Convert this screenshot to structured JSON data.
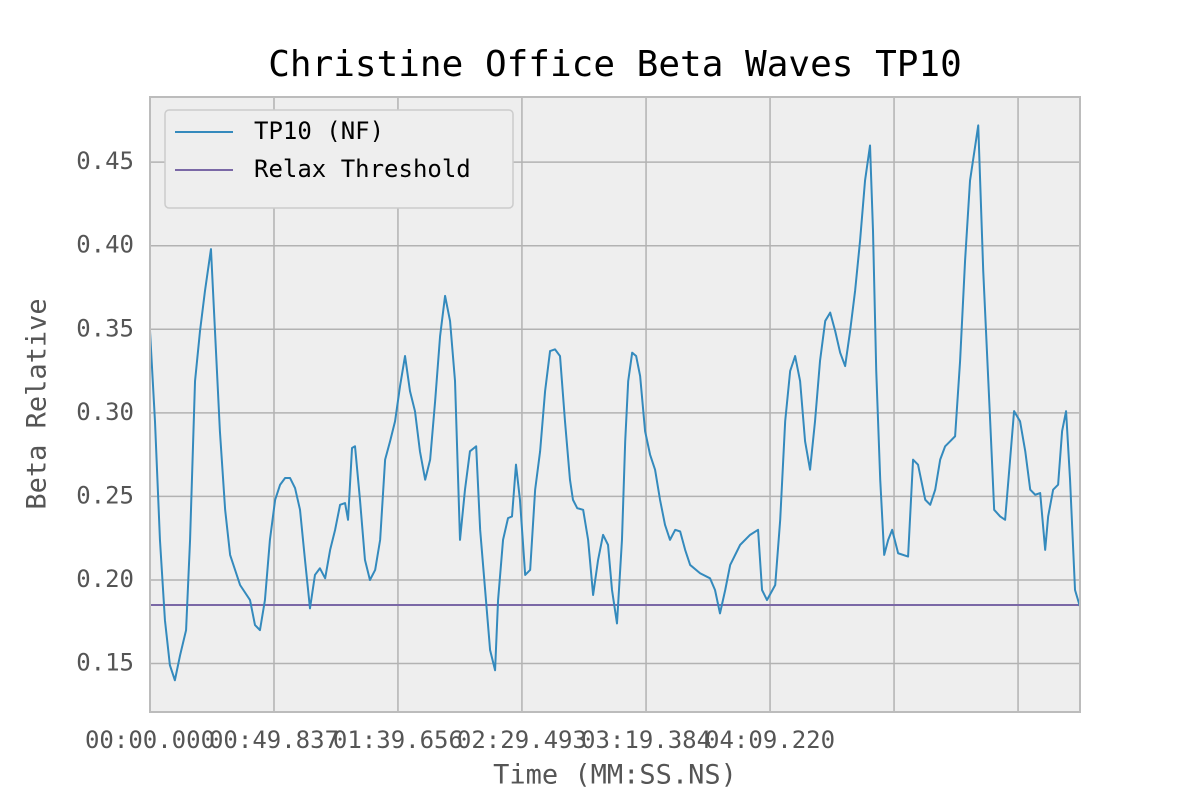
{
  "chart_data": {
    "type": "line",
    "title": "Christine Office Beta Waves TP10",
    "x_label": "Time (MM:SS.NS)",
    "y_label": "Beta Relative",
    "x": [
      0,
      2.0,
      4.0,
      6.0,
      8.0,
      10.0,
      12.1,
      14.5,
      16.1,
      18.1,
      20.1,
      22.1,
      24.5,
      28.1,
      30.2,
      32.2,
      36.2,
      40.2,
      42.2,
      44.2,
      46.2,
      48.2,
      50.3,
      52.3,
      54.3,
      56.3,
      58.3,
      60.3,
      62.3,
      64.3,
      66.3,
      68.3,
      70.4,
      72.4,
      74.4,
      76.4,
      78.4,
      79.6,
      81.2,
      82.4,
      84.4,
      86.4,
      88.4,
      90.5,
      92.5,
      94.5,
      96.5,
      98.5,
      100.5,
      102.5,
      104.5,
      106.5,
      108.5,
      110.6,
      112.6,
      114.6,
      116.6,
      118.6,
      120.6,
      122.6,
      124.6,
      126.6,
      128.6,
      131.1,
      132.7,
      134.7,
      136.7,
      138.7,
      139.9,
      141.9,
      143.9,
      145.5,
      147.1,
      148.7,
      150.8,
      152.8,
      154.8,
      156.8,
      158.8,
      160.8,
      162.8,
      164.8,
      166.8,
      168.8,
      170.0,
      171.7,
      174.1,
      176.1,
      178.1,
      180.1,
      182.1,
      184.1,
      185.7,
      187.7,
      189.7,
      191.0,
      192.2,
      193.8,
      195.4,
      197.0,
      199.0,
      201.0,
      203.0,
      205.0,
      207.0,
      209.0,
      211.1,
      213.1,
      215.1,
      217.1,
      221.1,
      225.1,
      227.1,
      229.1,
      231.2,
      233.2,
      237.2,
      241.2,
      244.4,
      246.0,
      248.0,
      251.3,
      253.3,
      255.3,
      257.3,
      259.3,
      261.3,
      263.3,
      265.3,
      267.3,
      269.3,
      271.4,
      273.4,
      275.4,
      277.4,
      279.4,
      281.4,
      283.4,
      285.4,
      287.4,
      289.4,
      290.6,
      291.9,
      293.5,
      295.1,
      296.7,
      298.3,
      300.7,
      304.7,
      306.7,
      308.7,
      311.6,
      313.6,
      315.6,
      317.6,
      319.6,
      321.6,
      323.6,
      325.6,
      327.6,
      329.6,
      332.9,
      334.9,
      337.7,
      339.3,
      341.7,
      343.7,
      345.7,
      347.3,
      349.7,
      351.8,
      353.8,
      355.8,
      357.8,
      359.8,
      361.0,
      363.0,
      365.0,
      366.6,
      368.2,
      369.8,
      371.8,
      373.8
    ],
    "series": [
      {
        "name": "TP10 (NF)",
        "color": "#348abd",
        "values": [
          0.349,
          0.295,
          0.224,
          0.176,
          0.149,
          0.14,
          0.155,
          0.17,
          0.224,
          0.319,
          0.349,
          0.373,
          0.398,
          0.289,
          0.242,
          0.215,
          0.197,
          0.188,
          0.173,
          0.17,
          0.188,
          0.224,
          0.248,
          0.257,
          0.261,
          0.261,
          0.255,
          0.242,
          0.212,
          0.183,
          0.203,
          0.207,
          0.201,
          0.218,
          0.23,
          0.245,
          0.246,
          0.236,
          0.279,
          0.28,
          0.248,
          0.212,
          0.2,
          0.206,
          0.224,
          0.272,
          0.283,
          0.295,
          0.316,
          0.334,
          0.313,
          0.301,
          0.277,
          0.26,
          0.272,
          0.307,
          0.346,
          0.37,
          0.355,
          0.319,
          0.224,
          0.254,
          0.277,
          0.28,
          0.23,
          0.194,
          0.158,
          0.146,
          0.188,
          0.224,
          0.237,
          0.238,
          0.269,
          0.248,
          0.203,
          0.206,
          0.254,
          0.277,
          0.313,
          0.337,
          0.338,
          0.334,
          0.295,
          0.26,
          0.248,
          0.243,
          0.242,
          0.224,
          0.191,
          0.212,
          0.227,
          0.221,
          0.194,
          0.174,
          0.224,
          0.283,
          0.319,
          0.336,
          0.334,
          0.322,
          0.289,
          0.275,
          0.266,
          0.248,
          0.233,
          0.224,
          0.23,
          0.229,
          0.218,
          0.209,
          0.204,
          0.201,
          0.194,
          0.18,
          0.194,
          0.209,
          0.221,
          0.227,
          0.23,
          0.194,
          0.188,
          0.197,
          0.236,
          0.295,
          0.325,
          0.334,
          0.319,
          0.283,
          0.266,
          0.295,
          0.331,
          0.355,
          0.36,
          0.349,
          0.336,
          0.328,
          0.349,
          0.373,
          0.403,
          0.439,
          0.46,
          0.409,
          0.325,
          0.26,
          0.215,
          0.224,
          0.23,
          0.216,
          0.214,
          0.272,
          0.269,
          0.248,
          0.245,
          0.254,
          0.272,
          0.28,
          0.283,
          0.286,
          0.331,
          0.391,
          0.439,
          0.472,
          0.385,
          0.295,
          0.242,
          0.238,
          0.236,
          0.272,
          0.301,
          0.295,
          0.277,
          0.254,
          0.251,
          0.252,
          0.218,
          0.238,
          0.254,
          0.257,
          0.289,
          0.301,
          0.26,
          0.194,
          0.184
        ]
      }
    ],
    "hlines": [
      {
        "name": "Relax Threshold",
        "color": "#7a68a6",
        "value": 0.185
      }
    ],
    "xlim": [
      0,
      373.8
    ],
    "ylim": [
      0.121,
      0.489
    ],
    "xticks": [
      {
        "value": 0,
        "label": "00:00.000"
      },
      {
        "value": 49.837,
        "label": "00:49.837"
      },
      {
        "value": 99.656,
        "label": "01:39.656"
      },
      {
        "value": 149.493,
        "label": "02:29.493"
      },
      {
        "value": 199.384,
        "label": "03:19.384"
      },
      {
        "value": 249.22,
        "label": "04:09.220"
      },
      {
        "value": 299.06,
        "label": null
      },
      {
        "value": 348.9,
        "label": null
      }
    ],
    "yticks": [
      {
        "value": 0.15,
        "label": "0.15"
      },
      {
        "value": 0.2,
        "label": "0.20"
      },
      {
        "value": 0.25,
        "label": "0.25"
      },
      {
        "value": 0.3,
        "label": "0.30"
      },
      {
        "value": 0.35,
        "label": "0.35"
      },
      {
        "value": 0.4,
        "label": "0.40"
      },
      {
        "value": 0.45,
        "label": "0.45"
      }
    ],
    "grid": true,
    "legend": "upper-left"
  }
}
